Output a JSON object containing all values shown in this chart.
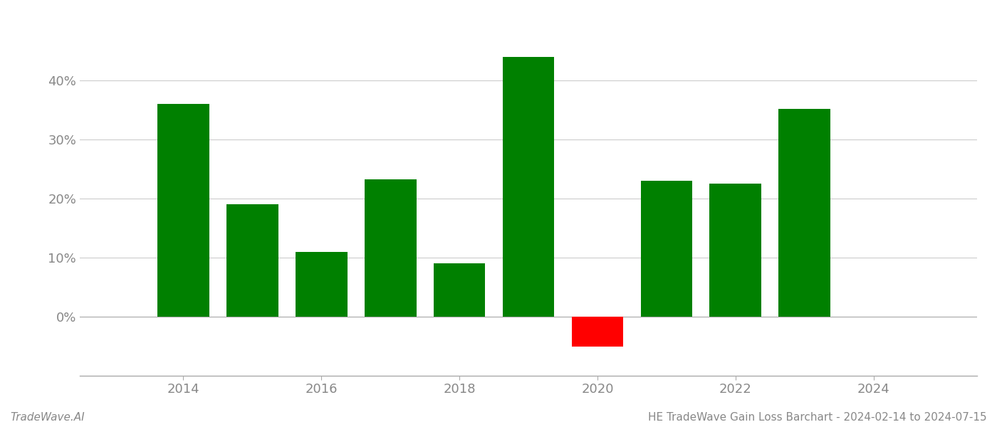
{
  "years": [
    2014,
    2015,
    2016,
    2017,
    2018,
    2019,
    2020,
    2021,
    2022,
    2023
  ],
  "values": [
    0.36,
    0.19,
    0.11,
    0.233,
    0.09,
    0.44,
    -0.05,
    0.23,
    0.225,
    0.352
  ],
  "colors": [
    "#008000",
    "#008000",
    "#008000",
    "#008000",
    "#008000",
    "#008000",
    "#ff0000",
    "#008000",
    "#008000",
    "#008000"
  ],
  "ylim": [
    -0.1,
    0.5
  ],
  "yticks": [
    0.0,
    0.1,
    0.2,
    0.3,
    0.4
  ],
  "ytick_labels": [
    "0%",
    "10%",
    "20%",
    "30%",
    "40%"
  ],
  "xticks": [
    2014,
    2016,
    2018,
    2020,
    2022,
    2024
  ],
  "footer_left": "TradeWave.AI",
  "footer_right": "HE TradeWave Gain Loss Barchart - 2024-02-14 to 2024-07-15",
  "bg_color": "#ffffff",
  "grid_color": "#cccccc",
  "bar_width": 0.75
}
